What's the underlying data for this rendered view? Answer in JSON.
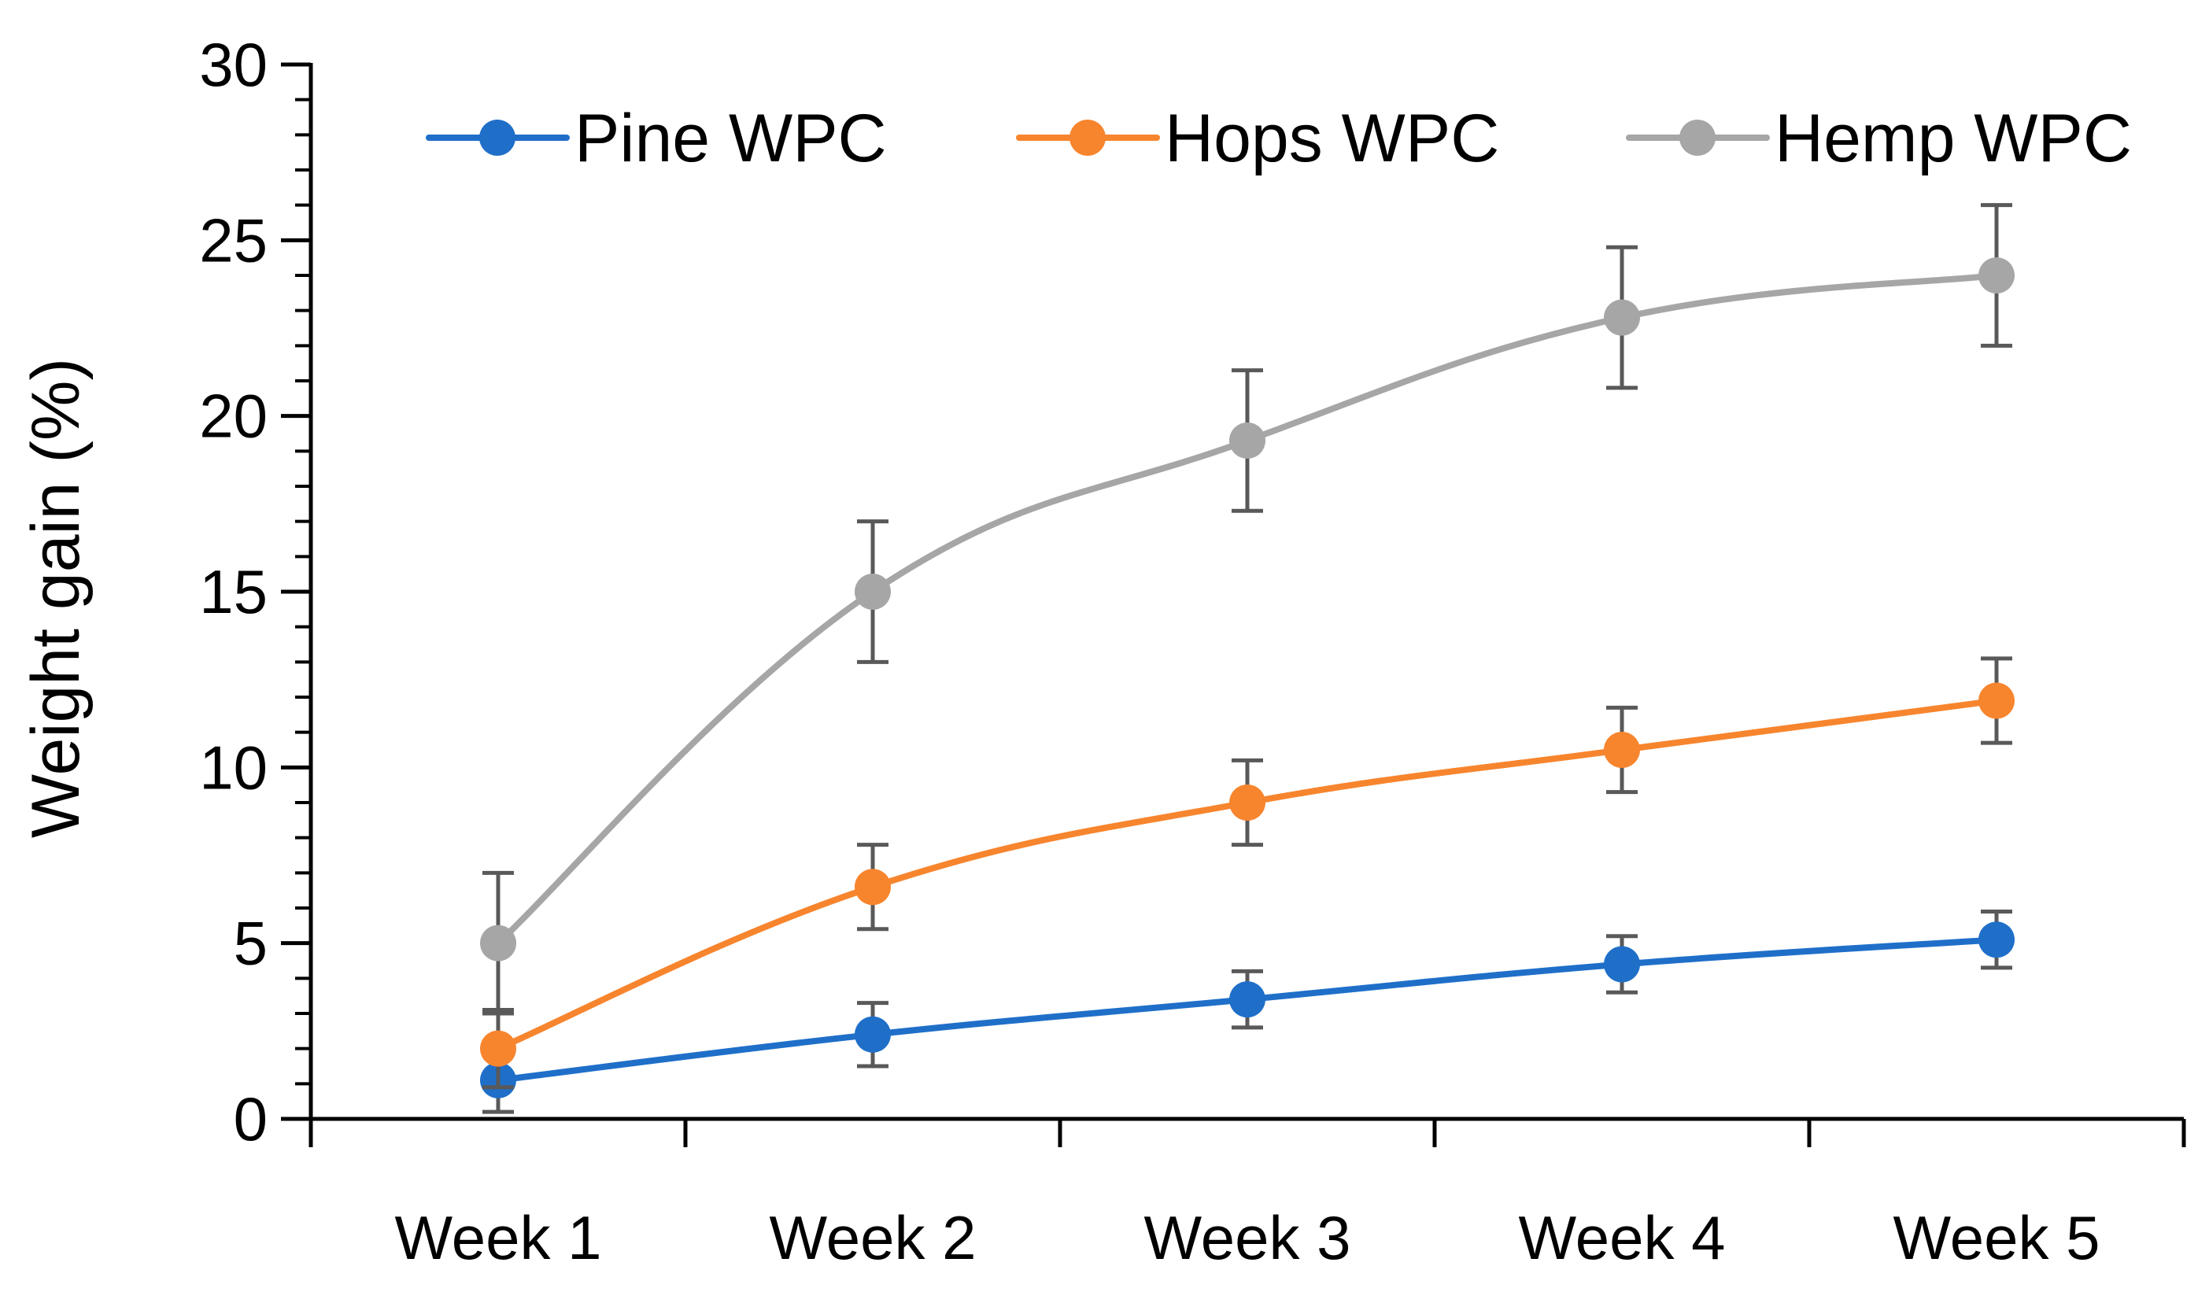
{
  "chart_data": {
    "type": "line",
    "title": "",
    "xlabel": "",
    "ylabel": "Weight gain (%)",
    "categories": [
      "Week 1",
      "Week 2",
      "Week 3",
      "Week 4",
      "Week 5"
    ],
    "ylim": [
      0,
      30
    ],
    "yticks": [
      0,
      5,
      10,
      15,
      20,
      25,
      30
    ],
    "ytick_labels": [
      "0",
      "5",
      "10",
      "15",
      "20",
      "25",
      "30"
    ],
    "minor_step": 1,
    "legend_position": "top",
    "error_bar_color": "#595959",
    "series": [
      {
        "name": "Pine WPC",
        "color": "#1F6FC9",
        "values": [
          1.1,
          2.4,
          3.4,
          4.4,
          5.1
        ],
        "errors": [
          0.9,
          0.9,
          0.8,
          0.8,
          0.8
        ]
      },
      {
        "name": "Hops WPC",
        "color": "#F7852E",
        "values": [
          2.0,
          6.6,
          9.0,
          10.5,
          11.9
        ],
        "errors": [
          1.1,
          1.2,
          1.2,
          1.2,
          1.2
        ]
      },
      {
        "name": "Hemp WPC",
        "color": "#A6A6A6",
        "values": [
          5.0,
          15.0,
          19.3,
          22.8,
          24.0
        ],
        "errors": [
          2.0,
          2.0,
          2.0,
          2.0,
          2.0
        ]
      }
    ]
  }
}
